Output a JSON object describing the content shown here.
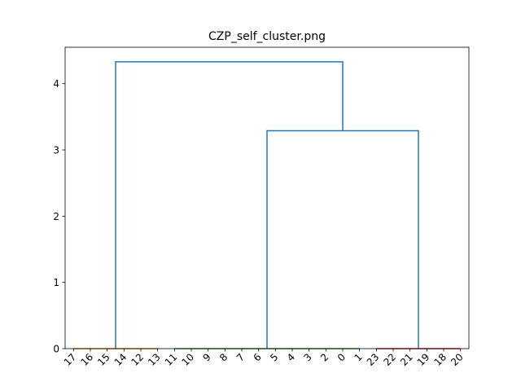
{
  "chart_data": {
    "type": "dendrogram",
    "title": "CZP_self_cluster.png",
    "xlabel": "",
    "ylabel": "",
    "ylim": [
      0,
      4.55
    ],
    "yticks": [
      0,
      1,
      2,
      3,
      4
    ],
    "grid": false,
    "leaf_order": [
      "17",
      "16",
      "15",
      "14",
      "12",
      "13",
      "11",
      "10",
      "9",
      "8",
      "7",
      "6",
      "5",
      "4",
      "3",
      "2",
      "0",
      "1",
      "23",
      "22",
      "21",
      "19",
      "18",
      "20"
    ],
    "clusters": [
      {
        "leaves": [
          "17",
          "16",
          "15",
          "14",
          "12",
          "13"
        ],
        "color": "#ff7f0e",
        "merge_height": 0
      },
      {
        "leaves": [
          "11",
          "10",
          "9",
          "8",
          "7",
          "6",
          "5",
          "4",
          "3",
          "2",
          "0",
          "1"
        ],
        "color": "#2ca02c",
        "merge_height": 0
      },
      {
        "leaves": [
          "23",
          "22",
          "21",
          "19",
          "18",
          "20"
        ],
        "color": "#d62728",
        "merge_height": 0
      }
    ],
    "links": [
      {
        "left_cluster": 1,
        "right_cluster": 2,
        "height": 3.29,
        "color": "#1f77b4"
      },
      {
        "left_cluster": 0,
        "right_link": 0,
        "height": 4.33,
        "color": "#1f77b4"
      }
    ],
    "colors": {
      "above_threshold": "#1f77b4"
    }
  }
}
